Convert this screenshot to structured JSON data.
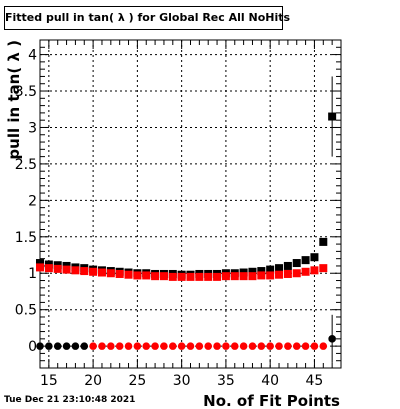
{
  "chart_data": {
    "type": "scatter",
    "title": "Fitted pull in tan( λ ) for Global Rec All NoHits",
    "xlabel": "No. of Fit Points",
    "ylabel": "pull in tan( λ )",
    "xlim": [
      14,
      48
    ],
    "ylim": [
      -0.3,
      4.2
    ],
    "x_ticks": [
      15,
      20,
      25,
      30,
      35,
      40,
      45
    ],
    "y_ticks": [
      0,
      0.5,
      1,
      1.5,
      2,
      2.5,
      3,
      3.5,
      4
    ],
    "grid": true,
    "series": [
      {
        "color": "#000000",
        "marker": "square",
        "x": [
          14,
          15,
          16,
          17,
          18,
          19,
          20,
          21,
          22,
          23,
          24,
          25,
          26,
          27,
          28,
          29,
          30,
          31,
          32,
          33,
          34,
          35,
          36,
          37,
          38,
          39,
          40,
          41,
          42,
          43,
          44,
          45,
          46,
          47
        ],
        "y": [
          1.14,
          1.12,
          1.11,
          1.1,
          1.08,
          1.07,
          1.05,
          1.04,
          1.03,
          1.02,
          1.01,
          1.0,
          1.0,
          0.99,
          0.99,
          0.99,
          0.98,
          0.98,
          0.99,
          0.99,
          0.99,
          1.0,
          1.0,
          1.01,
          1.02,
          1.03,
          1.05,
          1.07,
          1.1,
          1.14,
          1.18,
          1.22,
          1.43,
          3.15
        ],
        "yerr": [
          0,
          0,
          0,
          0,
          0,
          0,
          0,
          0,
          0,
          0,
          0,
          0,
          0,
          0,
          0,
          0,
          0,
          0,
          0,
          0,
          0,
          0,
          0,
          0,
          0,
          0,
          0,
          0,
          0,
          0,
          0,
          0,
          0.03,
          0.55
        ]
      },
      {
        "color": "#ff0000",
        "marker": "square",
        "x": [
          14,
          15,
          16,
          17,
          18,
          19,
          20,
          21,
          22,
          23,
          24,
          25,
          26,
          27,
          28,
          29,
          30,
          31,
          32,
          33,
          34,
          35,
          36,
          37,
          38,
          39,
          40,
          41,
          42,
          43,
          44,
          45,
          46
        ],
        "y": [
          1.08,
          1.07,
          1.06,
          1.05,
          1.04,
          1.03,
          1.02,
          1.01,
          1.0,
          0.99,
          0.98,
          0.97,
          0.97,
          0.96,
          0.96,
          0.95,
          0.95,
          0.95,
          0.95,
          0.95,
          0.95,
          0.96,
          0.96,
          0.96,
          0.96,
          0.97,
          0.97,
          0.98,
          0.99,
          1.0,
          1.02,
          1.04,
          1.07
        ]
      },
      {
        "color": "#000000",
        "marker": "circle",
        "x": [
          14,
          15,
          16,
          17,
          18,
          19,
          47
        ],
        "y": [
          0,
          0,
          0,
          0,
          0,
          0,
          0.1
        ],
        "yerr": [
          0,
          0,
          0,
          0,
          0,
          0,
          0.33
        ]
      },
      {
        "color": "#ff0000",
        "marker": "circle",
        "x": [
          20,
          21,
          22,
          23,
          24,
          25,
          26,
          27,
          28,
          29,
          30,
          31,
          32,
          33,
          34,
          35,
          36,
          37,
          38,
          39,
          40,
          41,
          42,
          43,
          44,
          45,
          46
        ],
        "y": [
          0,
          0,
          0,
          0,
          0,
          0,
          0,
          0,
          0,
          0,
          0,
          0,
          0,
          0,
          0,
          0,
          0,
          0,
          0,
          0,
          0,
          0,
          0,
          0,
          0,
          0,
          0
        ]
      }
    ]
  },
  "timestamp": "Tue Dec 21 23:10:48 2021"
}
